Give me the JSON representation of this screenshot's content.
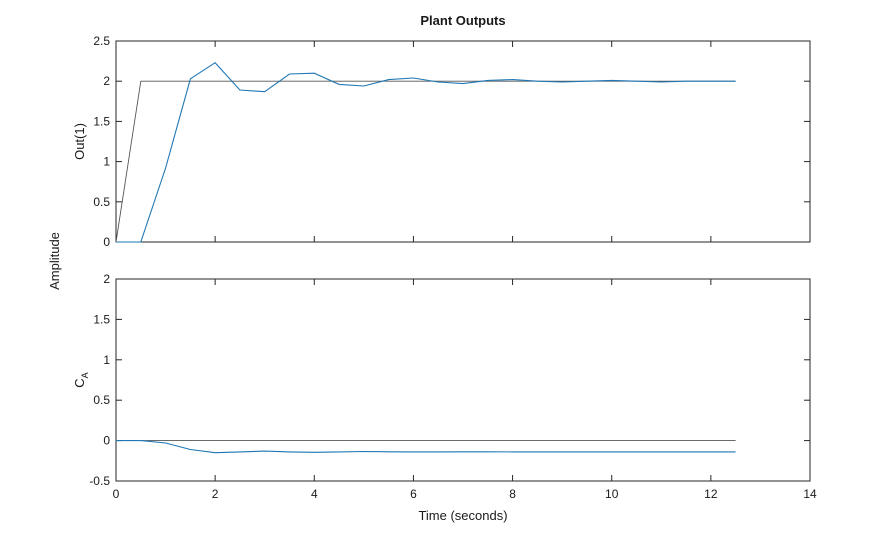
{
  "chart_data": {
    "title": "Plant Outputs",
    "shared_ylabel": "Amplitude",
    "xlabel": "Time (seconds)",
    "colors": {
      "response": "#1f77b4",
      "reference": "#555555",
      "axes": "#262626"
    },
    "axes": [
      {
        "type": "line",
        "ylabel": "Out(1)",
        "ylabel_sub": "",
        "xlim": [
          0,
          14
        ],
        "ylim": [
          0,
          2.5
        ],
        "yticks": [
          0,
          0.5,
          1,
          1.5,
          2,
          2.5
        ],
        "ytick_labels": [
          "0",
          "0.5",
          "1",
          "1.5",
          "2",
          "2.5"
        ],
        "xticks": [
          0,
          2,
          4,
          6,
          8,
          10,
          12,
          14
        ],
        "xtick_labels": [],
        "series": [
          {
            "role": "reference",
            "x": [
              0,
              0.5,
              12.5
            ],
            "y": [
              0,
              2,
              2
            ]
          },
          {
            "role": "response",
            "x": [
              0,
              0.5,
              1,
              1.5,
              2,
              2.5,
              3,
              3.5,
              4,
              4.5,
              5,
              5.5,
              6,
              6.5,
              7,
              7.5,
              8,
              8.5,
              9,
              9.5,
              10,
              10.5,
              11,
              11.5,
              12,
              12.5
            ],
            "y": [
              0,
              0,
              0.92,
              2.03,
              2.23,
              1.89,
              1.87,
              2.09,
              2.1,
              1.96,
              1.94,
              2.02,
              2.04,
              1.99,
              1.97,
              2.01,
              2.02,
              2.0,
              1.99,
              2.0,
              2.01,
              2.0,
              1.99,
              2.0,
              2.0,
              2.0
            ]
          }
        ]
      },
      {
        "type": "line",
        "ylabel": "C",
        "ylabel_sub": "A",
        "xlim": [
          0,
          14
        ],
        "ylim": [
          -0.5,
          2
        ],
        "yticks": [
          -0.5,
          0,
          0.5,
          1,
          1.5,
          2
        ],
        "ytick_labels": [
          "-0.5",
          "0",
          "0.5",
          "1",
          "1.5",
          "2"
        ],
        "xticks": [
          0,
          2,
          4,
          6,
          8,
          10,
          12,
          14
        ],
        "xtick_labels": [
          "0",
          "2",
          "4",
          "6",
          "8",
          "10",
          "12",
          "14"
        ],
        "series": [
          {
            "role": "reference",
            "x": [
              0,
              12.5
            ],
            "y": [
              0,
              0
            ]
          },
          {
            "role": "response",
            "x": [
              0,
              0.5,
              1,
              1.5,
              2,
              2.5,
              3,
              3.5,
              4,
              4.5,
              5,
              5.5,
              6,
              6.5,
              7,
              7.5,
              8,
              8.5,
              9,
              9.5,
              10,
              10.5,
              11,
              11.5,
              12,
              12.5
            ],
            "y": [
              0,
              0,
              -0.03,
              -0.11,
              -0.15,
              -0.14,
              -0.13,
              -0.14,
              -0.145,
              -0.14,
              -0.135,
              -0.138,
              -0.14,
              -0.14,
              -0.138,
              -0.139,
              -0.14,
              -0.14,
              -0.14,
              -0.14,
              -0.14,
              -0.14,
              -0.14,
              -0.14,
              -0.14,
              -0.14
            ]
          }
        ]
      }
    ]
  }
}
